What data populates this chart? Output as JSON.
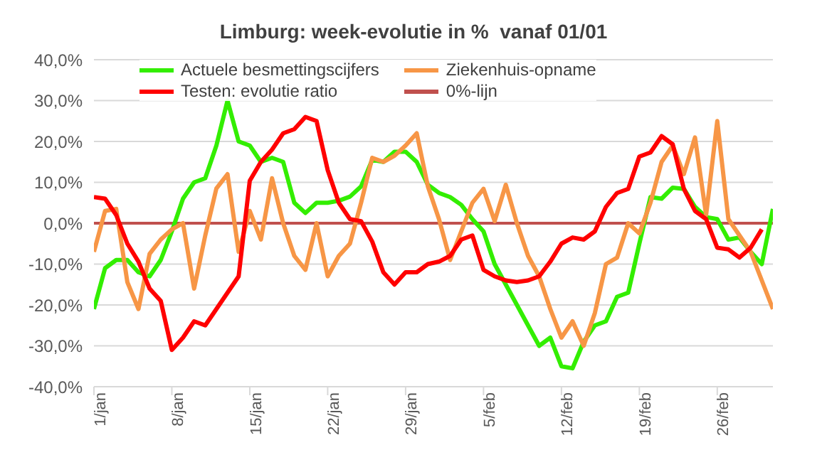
{
  "chart_data": {
    "type": "line",
    "title": "Limburg: week-evolutie in %  vanaf 01/01",
    "x": [
      "--01-01",
      "--01-02",
      "--01-03",
      "--01-04",
      "--01-05",
      "--01-06",
      "--01-07",
      "--01-08",
      "--01-09",
      "--01-10",
      "--01-11",
      "--01-12",
      "--01-13",
      "--01-14",
      "--01-15",
      "--01-16",
      "--01-17",
      "--01-18",
      "--01-19",
      "--01-20",
      "--01-21",
      "--01-22",
      "--01-23",
      "--01-24",
      "--01-25",
      "--01-26",
      "--01-27",
      "--01-28",
      "--01-29",
      "--01-30",
      "--01-31",
      "--02-01",
      "--02-02",
      "--02-03",
      "--02-04",
      "--02-05",
      "--02-06",
      "--02-07",
      "--02-08",
      "--02-09",
      "--02-10",
      "--02-11",
      "--02-12",
      "--02-13",
      "--02-14",
      "--02-15",
      "--02-16",
      "--02-17",
      "--02-18",
      "--02-19",
      "--02-20",
      "--02-21",
      "--02-22",
      "--02-23",
      "--02-24",
      "--02-25",
      "--02-26",
      "--02-27",
      "--02-28",
      "--03-01",
      "--03-02",
      "--03-03"
    ],
    "series": [
      {
        "name": "Actuele besmettingscijfers",
        "color": "#33ee00",
        "values": [
          -21,
          -11,
          -9,
          -9,
          -12,
          -13,
          -9,
          -2,
          6,
          10,
          11,
          19,
          30,
          20,
          19,
          15,
          16,
          15,
          5,
          2.5,
          5,
          5,
          5.5,
          6.5,
          9,
          15.5,
          15,
          17.5,
          17.5,
          15,
          9.4,
          7.4,
          6.4,
          4.5,
          1,
          -2,
          -10,
          -15,
          -20,
          -25,
          -30,
          -28,
          -35,
          -35.5,
          -29,
          -25,
          -24,
          -18,
          -17,
          -5,
          6.4,
          6,
          8.7,
          8.4,
          4,
          1.5,
          1,
          -4,
          -3.5,
          -7,
          -10,
          3.5
        ]
      },
      {
        "name": "Ziekenhuis-opname",
        "color": "#f79646",
        "values": [
          -7,
          3,
          3.5,
          -14.4,
          -21,
          -7.5,
          -4,
          -1.5,
          0,
          -16,
          -3,
          8.5,
          12,
          -7,
          3,
          -4,
          11,
          0,
          -8,
          -11.4,
          0,
          -13,
          -8,
          -5,
          5,
          16,
          15,
          16.5,
          19,
          22,
          9,
          1,
          -9,
          -2,
          5,
          8.4,
          0.5,
          9.4,
          0,
          -8,
          -13,
          -21,
          -28,
          -24,
          -30,
          -22,
          -10,
          -8.4,
          0,
          -2.5,
          5,
          15,
          19,
          12,
          21,
          2,
          25,
          1,
          -3,
          -7,
          -14,
          -21
        ]
      },
      {
        "name": "Testen: evolutie ratio",
        "color": "#ff0000",
        "values": [
          6.4,
          6,
          2,
          -5,
          -9.4,
          -16,
          -19,
          -31,
          -28,
          -24,
          -25,
          -21,
          -17,
          -13,
          10.4,
          15,
          18,
          22,
          23,
          26,
          25,
          13,
          5,
          1,
          0.5,
          -4.5,
          -12,
          -15,
          -12,
          -12,
          -10,
          -9.4,
          -8,
          -4,
          -3,
          -11.4,
          -13,
          -14,
          -14.4,
          -14,
          -13,
          -9.4,
          -5,
          -3.5,
          -4,
          -2,
          4,
          7.4,
          8.4,
          16.3,
          17.3,
          21.3,
          19.3,
          8.4,
          3,
          1,
          -6,
          -6.4,
          -8.4,
          -6,
          -1.5,
          null
        ]
      }
    ],
    "ref_lines": [
      {
        "axis": "y",
        "value": 0,
        "label": "0%-lijn",
        "color": "#c0504d"
      }
    ],
    "ylim": [
      -40,
      40
    ],
    "yticks": [
      {
        "value": -40,
        "label": "-40,0%"
      },
      {
        "value": -30,
        "label": "-30,0%"
      },
      {
        "value": -20,
        "label": "-20,0%"
      },
      {
        "value": -10,
        "label": "-10,0%"
      },
      {
        "value": 0,
        "label": "0,0%"
      },
      {
        "value": 10,
        "label": "10,0%"
      },
      {
        "value": 20,
        "label": "20,0%"
      },
      {
        "value": 30,
        "label": "30,0%"
      },
      {
        "value": 40,
        "label": "40,0%"
      }
    ],
    "xticks": [
      {
        "value": "--01-01",
        "label": "1/jan"
      },
      {
        "value": "--01-08",
        "label": "8/jan"
      },
      {
        "value": "--01-15",
        "label": "15/jan"
      },
      {
        "value": "--01-22",
        "label": "22/jan"
      },
      {
        "value": "--01-29",
        "label": "29/jan"
      },
      {
        "value": "--02-05",
        "label": "5/feb"
      },
      {
        "value": "--02-12",
        "label": "12/feb"
      },
      {
        "value": "--02-19",
        "label": "19/feb"
      },
      {
        "value": "--02-26",
        "label": "26/feb"
      }
    ],
    "xlim": [
      "--01-01",
      "--03-03"
    ],
    "grid": "y",
    "legend": "top",
    "marker": "none",
    "line_style": "solid"
  }
}
